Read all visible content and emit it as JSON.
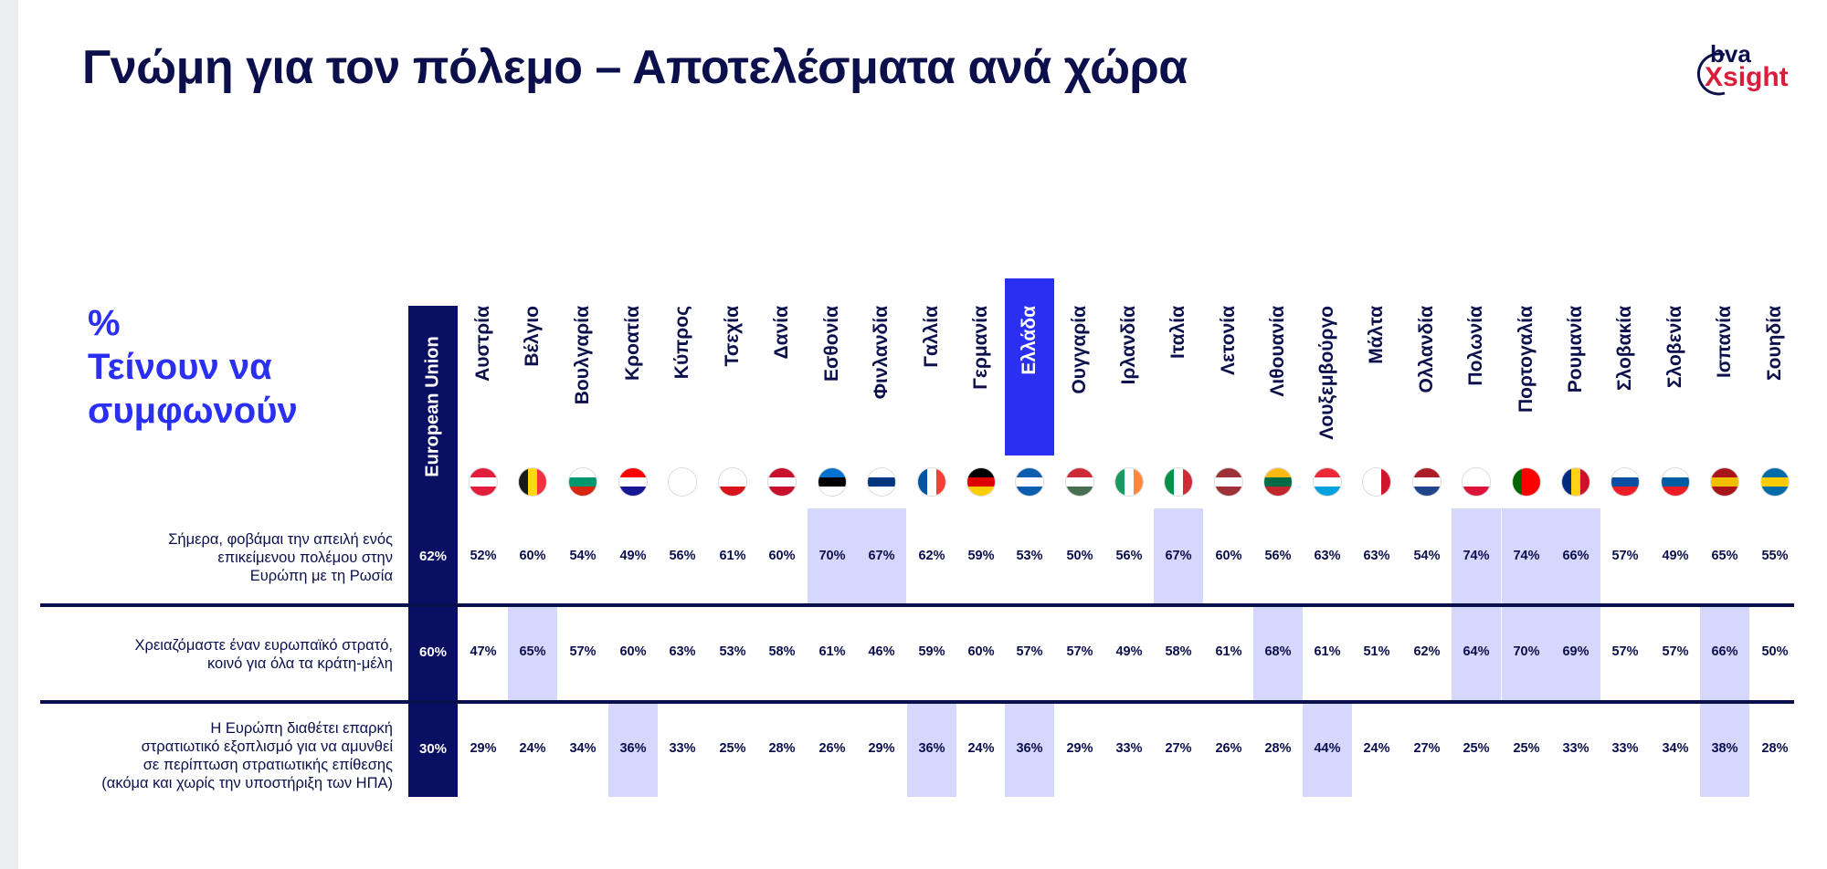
{
  "title": "Γνώμη για τον πόλεμο – Αποτελέσματα ανά χώρα",
  "logo": {
    "top": "bva",
    "bottom": "Xsight"
  },
  "measure_label": {
    "line1": "%",
    "line2": "Τείνουν να",
    "line3": "συμφωνούν"
  },
  "colors": {
    "eu": "#0a0f63",
    "greece": "#2a2ff2",
    "highlight": "#d6d7fd",
    "text": "#0b0f4c"
  },
  "chart_data": {
    "type": "table",
    "columns": [
      "European Union",
      "Αυστρία",
      "Βέλγιο",
      "Βουλγαρία",
      "Κροατία",
      "Κύπρος",
      "Τσεχία",
      "Δανία",
      "Εσθονία",
      "Φινλανδία",
      "Γαλλία",
      "Γερμανία",
      "Ελλάδα",
      "Ουγγαρία",
      "Ιρλανδία",
      "Ιταλία",
      "Λετονία",
      "Λιθουανία",
      "Λουξεμβούργο",
      "Μάλτα",
      "Ολλανδία",
      "Πολωνία",
      "Πορτογαλία",
      "Ρουμανία",
      "Σλοβακία",
      "Σλοβενία",
      "Ισπανία",
      "Σουηδία"
    ],
    "rows": [
      {
        "label": [
          "Σήμερα, φοβάμαι την απειλή ενός",
          "επικείμενου πολέμου στην",
          "Ευρώπη με τη Ρωσία"
        ],
        "values": [
          "62%",
          "52%",
          "60%",
          "54%",
          "49%",
          "56%",
          "61%",
          "60%",
          "70%",
          "67%",
          "62%",
          "59%",
          "53%",
          "50%",
          "56%",
          "67%",
          "60%",
          "56%",
          "63%",
          "63%",
          "54%",
          "74%",
          "74%",
          "66%",
          "57%",
          "49%",
          "65%",
          "55%"
        ],
        "highlighted": [
          8,
          9,
          15,
          21,
          22,
          23
        ]
      },
      {
        "label": [
          "Χρειαζόμαστε έναν ευρωπαϊκό στρατό,",
          "κοινό για όλα τα κράτη-μέλη"
        ],
        "values": [
          "60%",
          "47%",
          "65%",
          "57%",
          "60%",
          "63%",
          "53%",
          "58%",
          "61%",
          "46%",
          "59%",
          "60%",
          "57%",
          "57%",
          "49%",
          "58%",
          "61%",
          "68%",
          "61%",
          "51%",
          "62%",
          "64%",
          "70%",
          "69%",
          "57%",
          "57%",
          "66%",
          "50%"
        ],
        "highlighted": [
          2,
          17,
          21,
          22,
          23,
          26
        ]
      },
      {
        "label": [
          "Η Ευρώπη διαθέτει επαρκή",
          "στρατιωτικό εξοπλισμό για να αμυνθεί",
          "σε περίπτωση στρατιωτικής επίθεσης",
          "(ακόμα και χωρίς την υποστήριξη των ΗΠΑ)"
        ],
        "values": [
          "30%",
          "29%",
          "24%",
          "34%",
          "36%",
          "33%",
          "25%",
          "28%",
          "26%",
          "29%",
          "36%",
          "24%",
          "36%",
          "29%",
          "33%",
          "27%",
          "26%",
          "28%",
          "44%",
          "24%",
          "27%",
          "25%",
          "25%",
          "33%",
          "33%",
          "34%",
          "38%",
          "28%"
        ],
        "highlighted": [
          4,
          10,
          12,
          18,
          26
        ]
      }
    ]
  },
  "flags": [
    {
      "name": "austria-flag-icon",
      "type": "h",
      "colors": [
        "#e31d3c",
        "#ffffff",
        "#e31d3c"
      ]
    },
    {
      "name": "belgium-flag-icon",
      "type": "v",
      "colors": [
        "#1a1a1a",
        "#ffd90c",
        "#ef3340"
      ]
    },
    {
      "name": "bulgaria-flag-icon",
      "type": "h",
      "colors": [
        "#ffffff",
        "#00966e",
        "#d62612"
      ]
    },
    {
      "name": "croatia-flag-icon",
      "type": "h",
      "colors": [
        "#ff0000",
        "#ffffff",
        "#171796"
      ]
    },
    {
      "name": "cyprus-flag-icon",
      "type": "h",
      "colors": [
        "#ffffff",
        "#ffffff",
        "#ffffff"
      ]
    },
    {
      "name": "czechia-flag-icon",
      "type": "h",
      "colors": [
        "#ffffff",
        "#ffffff",
        "#d7141a"
      ]
    },
    {
      "name": "denmark-flag-icon",
      "type": "h",
      "colors": [
        "#c8102e",
        "#ffffff",
        "#c8102e"
      ]
    },
    {
      "name": "estonia-flag-icon",
      "type": "h",
      "colors": [
        "#0072ce",
        "#000000",
        "#ffffff"
      ]
    },
    {
      "name": "finland-flag-icon",
      "type": "h",
      "colors": [
        "#ffffff",
        "#003580",
        "#ffffff"
      ]
    },
    {
      "name": "france-flag-icon",
      "type": "v",
      "colors": [
        "#0055a4",
        "#ffffff",
        "#ef4135"
      ]
    },
    {
      "name": "germany-flag-icon",
      "type": "h",
      "colors": [
        "#000000",
        "#dd0000",
        "#ffce00"
      ]
    },
    {
      "name": "greece-flag-icon",
      "type": "h",
      "colors": [
        "#0d5eaf",
        "#ffffff",
        "#0d5eaf"
      ]
    },
    {
      "name": "hungary-flag-icon",
      "type": "h",
      "colors": [
        "#ce2939",
        "#ffffff",
        "#477050"
      ]
    },
    {
      "name": "ireland-flag-icon",
      "type": "v",
      "colors": [
        "#169b62",
        "#ffffff",
        "#ff883e"
      ]
    },
    {
      "name": "italy-flag-icon",
      "type": "v",
      "colors": [
        "#009246",
        "#ffffff",
        "#ce2b37"
      ]
    },
    {
      "name": "latvia-flag-icon",
      "type": "h",
      "colors": [
        "#9e3039",
        "#ffffff",
        "#9e3039"
      ]
    },
    {
      "name": "lithuania-flag-icon",
      "type": "h",
      "colors": [
        "#fdb913",
        "#006a44",
        "#c1272d"
      ]
    },
    {
      "name": "luxembourg-flag-icon",
      "type": "h",
      "colors": [
        "#ed2939",
        "#ffffff",
        "#00a1de"
      ]
    },
    {
      "name": "malta-flag-icon",
      "type": "v",
      "colors": [
        "#ffffff",
        "#ffffff",
        "#cf142b"
      ]
    },
    {
      "name": "netherlands-flag-icon",
      "type": "h",
      "colors": [
        "#ae1c28",
        "#ffffff",
        "#21468b"
      ]
    },
    {
      "name": "poland-flag-icon",
      "type": "h",
      "colors": [
        "#ffffff",
        "#ffffff",
        "#dc143c"
      ]
    },
    {
      "name": "portugal-flag-icon",
      "type": "v",
      "colors": [
        "#006600",
        "#ff0000",
        "#ff0000"
      ]
    },
    {
      "name": "romania-flag-icon",
      "type": "v",
      "colors": [
        "#002b7f",
        "#fcd116",
        "#ce1126"
      ]
    },
    {
      "name": "slovakia-flag-icon",
      "type": "h",
      "colors": [
        "#ffffff",
        "#0b4ea2",
        "#ee1c25"
      ]
    },
    {
      "name": "slovenia-flag-icon",
      "type": "h",
      "colors": [
        "#ffffff",
        "#005da4",
        "#ed1c24"
      ]
    },
    {
      "name": "spain-flag-icon",
      "type": "h",
      "colors": [
        "#aa151b",
        "#f1bf00",
        "#aa151b"
      ]
    },
    {
      "name": "sweden-flag-icon",
      "type": "h",
      "colors": [
        "#006aa7",
        "#fecc00",
        "#006aa7"
      ]
    }
  ]
}
